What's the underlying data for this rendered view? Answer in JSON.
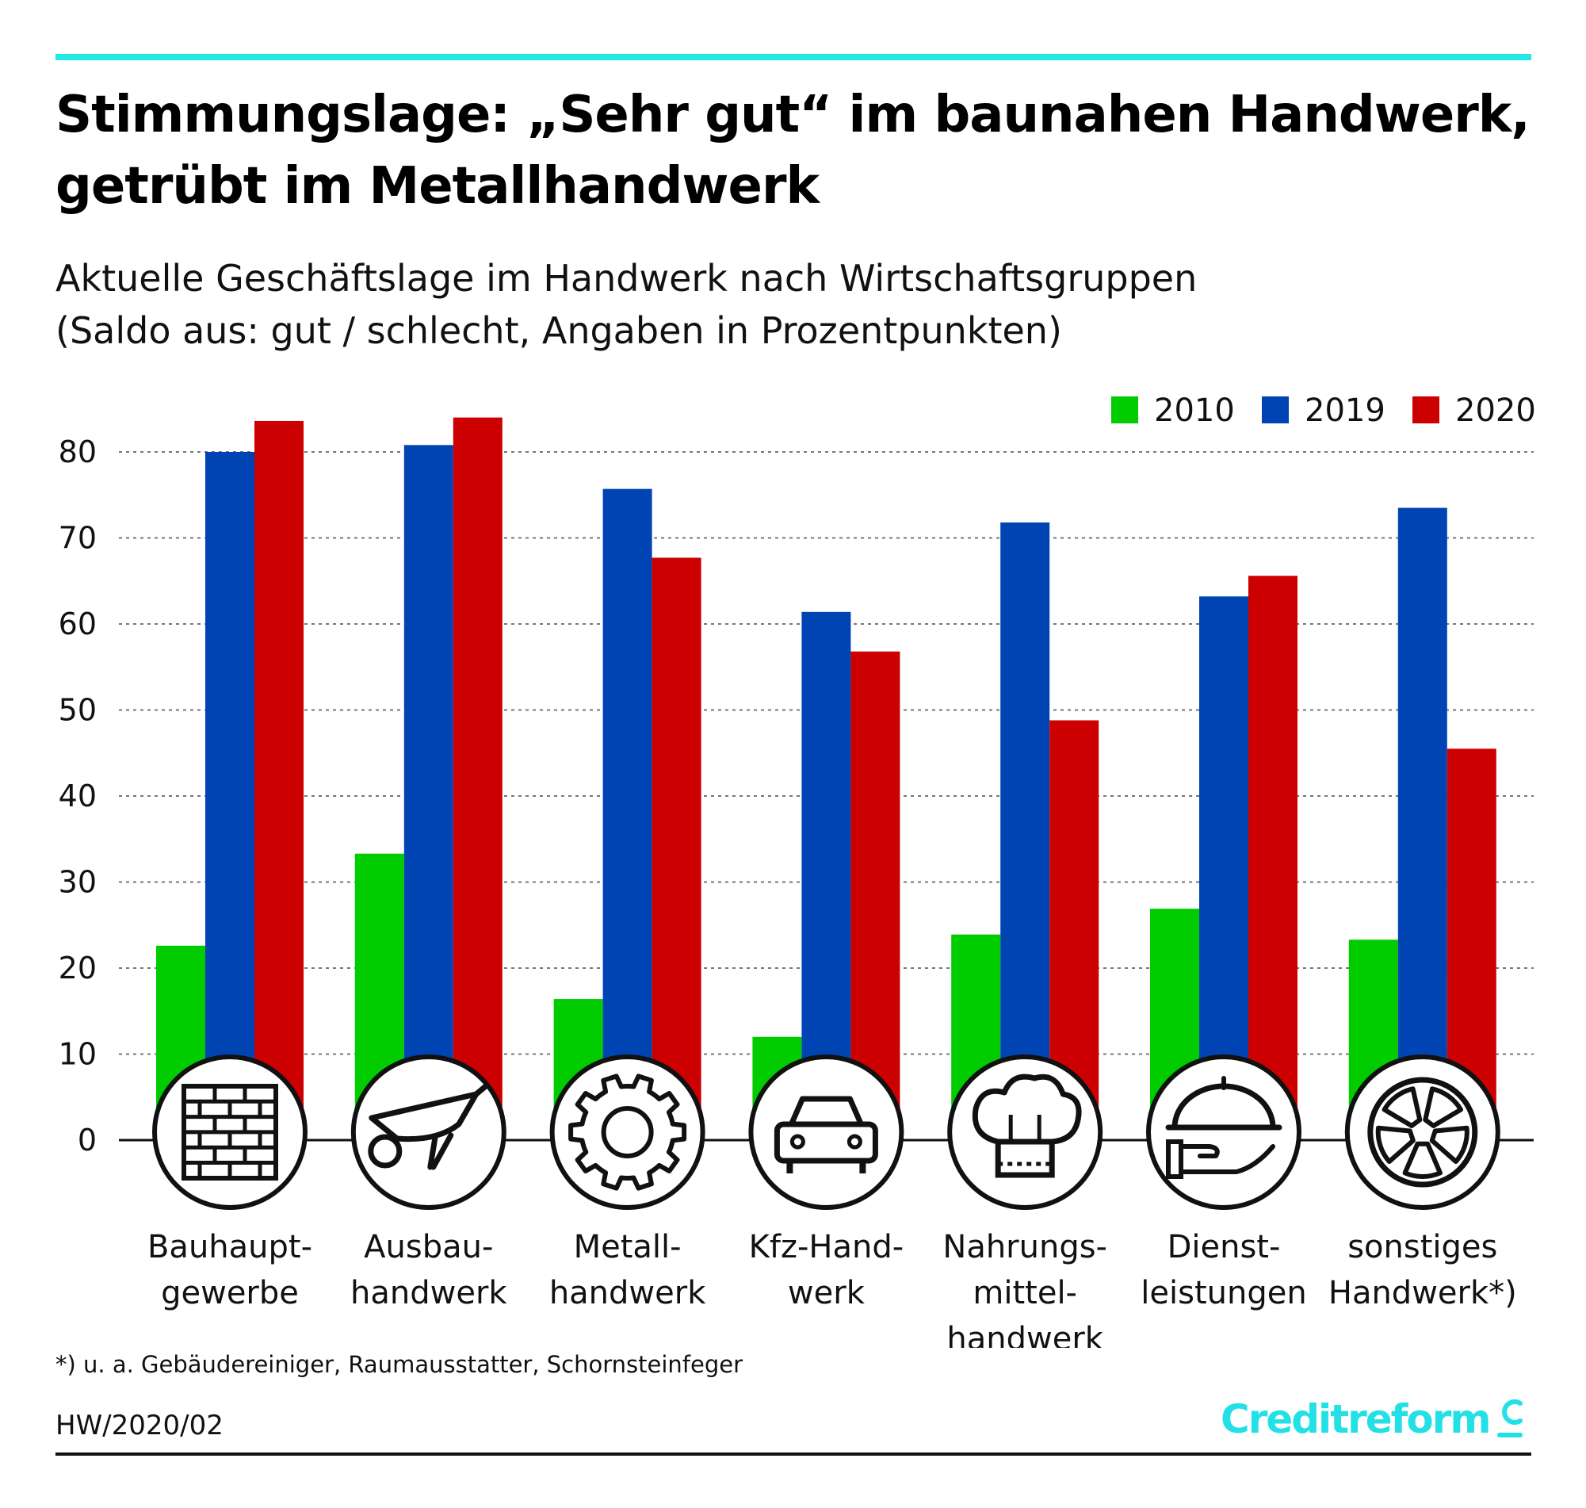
{
  "header": {
    "title_line1": "Stimmungslage: „Sehr gut“ im baunahen Handwerk,",
    "title_line2": "getrübt im Metallhandwerk",
    "subtitle_line1": "Aktuelle Geschäftslage im Handwerk nach Wirtschaftsgruppen",
    "subtitle_line2": "(Saldo aus: gut / schlecht, Angaben in Prozentpunkten)"
  },
  "chart_data": {
    "type": "bar",
    "title": "Aktuelle Geschäftslage im Handwerk nach Wirtschaftsgruppen",
    "ylabel": "Saldo aus: gut / schlecht, Angaben in Prozentpunkten",
    "xlabel": "",
    "ylim": [
      0,
      80
    ],
    "yticks": [
      0,
      10,
      20,
      30,
      40,
      50,
      60,
      70,
      80
    ],
    "grid": true,
    "legend_position": "top-right",
    "categories": [
      [
        "Bauhaupt-",
        "gewerbe"
      ],
      [
        "Ausbau-",
        "handwerk"
      ],
      [
        "Metall-",
        "handwerk"
      ],
      [
        "Kfz-Hand-",
        "werk"
      ],
      [
        "Nahrungs-",
        "mittel-",
        "handwerk"
      ],
      [
        "Dienst-",
        "leistungen"
      ],
      [
        "sonstiges",
        "Handwerk*)"
      ]
    ],
    "category_icons": [
      "brick-wall-icon",
      "wheelbarrow-icon",
      "gear-icon",
      "car-icon",
      "chef-hat-icon",
      "cloche-serving-icon",
      "wheel-icon"
    ],
    "series": [
      {
        "name": "2010",
        "color": "#00cc00",
        "values": [
          22.6,
          33.3,
          16.4,
          12.0,
          23.9,
          26.9,
          23.3
        ]
      },
      {
        "name": "2019",
        "color": "#0044b3",
        "values": [
          80.0,
          80.8,
          75.7,
          61.4,
          71.8,
          63.2,
          73.5
        ]
      },
      {
        "name": "2020",
        "color": "#cc0000",
        "values": [
          83.6,
          84.0,
          67.7,
          56.8,
          48.8,
          65.6,
          45.5
        ]
      }
    ]
  },
  "footer": {
    "footnote": "*) u. a. Gebäudereiniger, Raumausstatter, Schornsteinfeger",
    "code": "HW/2020/02",
    "brand": "Creditreform",
    "brand_color": "#22e0e6"
  }
}
